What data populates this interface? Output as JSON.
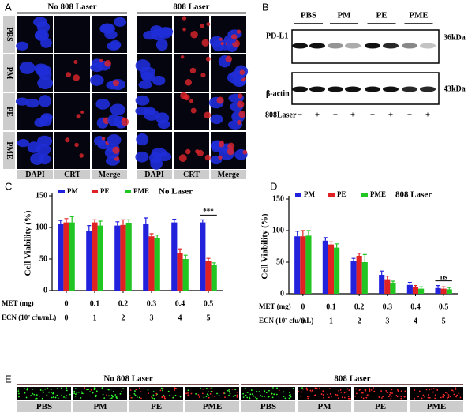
{
  "panel_a": {
    "letter": "A",
    "headers": [
      "No 808 Laser",
      "808 Laser"
    ],
    "rows": [
      "PBS",
      "PM",
      "PE",
      "PME"
    ],
    "channels": [
      "DAPI",
      "CRT",
      "Merge"
    ]
  },
  "panel_b": {
    "letter": "B",
    "groups": [
      "PBS",
      "PM",
      "PE",
      "PME"
    ],
    "bands": [
      {
        "name": "PD-L1",
        "size": "36kDa"
      },
      {
        "name": "β-actin",
        "size": "43kDa"
      }
    ],
    "laser_label": "808Laser",
    "laser_states": [
      "−",
      "+",
      "−",
      "+",
      "−",
      "+",
      "−",
      "+"
    ]
  },
  "chart_data": [
    {
      "type": "bar",
      "panel": "C",
      "subtitle": "No Laser",
      "y_label": "Cell Viability (%)",
      "x_label": "MET (mg)",
      "x_label_2": "ECN (10⁷ cfu/mL)",
      "categories": [
        "0",
        "0.1",
        "0.2",
        "0.3",
        "0.4",
        "0.5"
      ],
      "categories_2": [
        "0",
        "1",
        "2",
        "3",
        "4",
        "5"
      ],
      "ylim": [
        0,
        150
      ],
      "yticks": [
        0,
        50,
        100,
        150
      ],
      "series": [
        {
          "name": "PM",
          "color": "#2222dd",
          "values": [
            105,
            95,
            103,
            105,
            108,
            108
          ],
          "errors": [
            6,
            8,
            6,
            10,
            5,
            4
          ]
        },
        {
          "name": "PE",
          "color": "#e02222",
          "values": [
            108,
            108,
            104,
            86,
            60,
            47
          ],
          "errors": [
            6,
            4,
            8,
            4,
            6,
            4
          ]
        },
        {
          "name": "PME",
          "color": "#22c622",
          "values": [
            108,
            103,
            107,
            83,
            50,
            40
          ],
          "errors": [
            9,
            7,
            5,
            5,
            6,
            4
          ]
        }
      ],
      "significance": [
        {
          "label": "***",
          "category": "0.5"
        }
      ]
    },
    {
      "type": "bar",
      "panel": "D",
      "subtitle": "808 Laser",
      "y_label": "Cell Viability (%)",
      "x_label": "MET (mg)",
      "x_label_2": "ECN (10⁷ cfu/mL)",
      "categories": [
        "0",
        "0.1",
        "0.2",
        "0.3",
        "0.4",
        "0.5"
      ],
      "categories_2": [
        "0",
        "1",
        "2",
        "3",
        "4",
        "5"
      ],
      "ylim": [
        0,
        150
      ],
      "yticks": [
        0,
        50,
        100,
        150
      ],
      "series": [
        {
          "name": "PM",
          "color": "#2222dd",
          "values": [
            91,
            84,
            52,
            30,
            14,
            9
          ],
          "errors": [
            8,
            5,
            4,
            6,
            4,
            4
          ]
        },
        {
          "name": "PE",
          "color": "#e02222",
          "values": [
            91,
            78,
            60,
            23,
            10,
            8
          ],
          "errors": [
            9,
            4,
            4,
            5,
            3,
            3
          ]
        },
        {
          "name": "PME",
          "color": "#22c622",
          "values": [
            92,
            73,
            50,
            17,
            8,
            7
          ],
          "errors": [
            8,
            6,
            12,
            3,
            3,
            3
          ]
        }
      ],
      "significance": [
        {
          "label": "ns",
          "category": "0.5"
        }
      ]
    }
  ],
  "panel_e": {
    "letter": "E",
    "headers": [
      "No 808 Laser",
      "808 Laser"
    ],
    "labels": [
      "PBS",
      "PM",
      "PE",
      "PME",
      "PBS",
      "PM",
      "PE",
      "PME"
    ]
  }
}
